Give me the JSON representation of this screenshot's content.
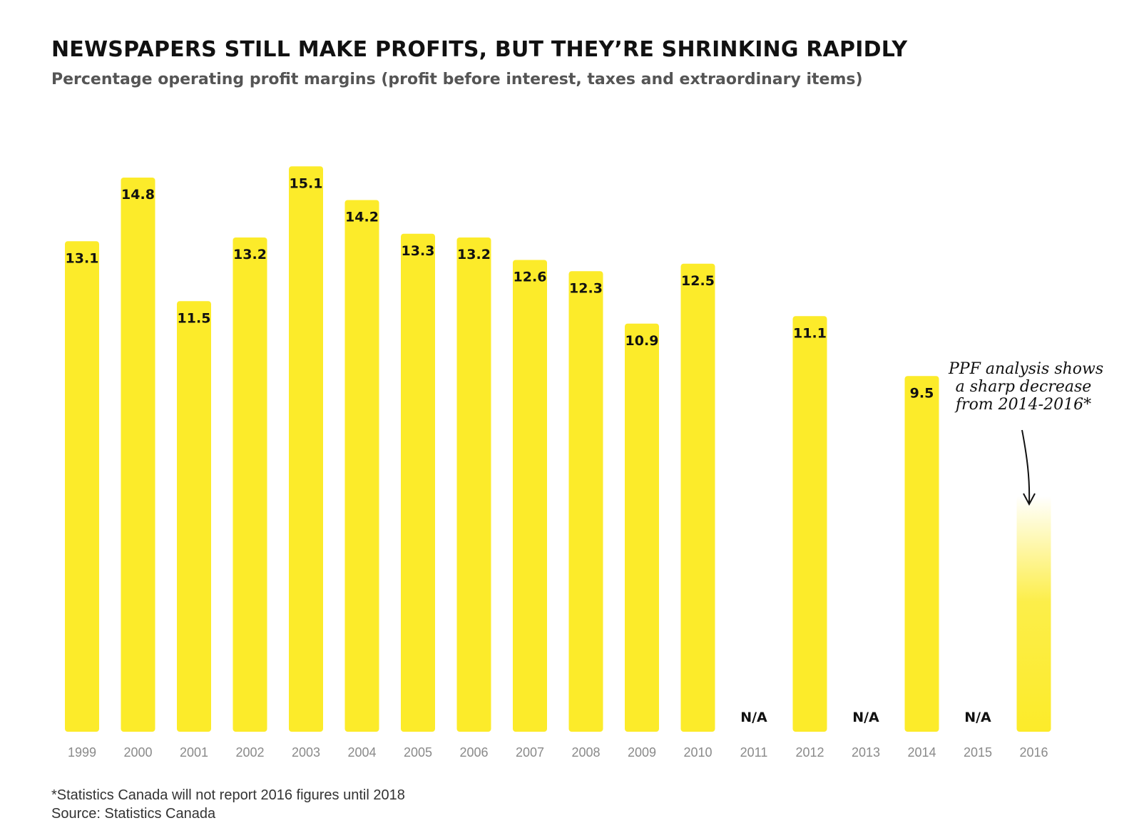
{
  "header": {
    "title": "NEWSPAPERS STILL MAKE PROFITS, BUT THEY’RE SHRINKING RAPIDLY",
    "subtitle": "Percentage operating profit margins (profit before interest, taxes and extraordinary items)"
  },
  "footer": {
    "footnote": "*Statistics Canada will not report 2016 figures until 2018",
    "source": "Source: Statistics Canada"
  },
  "annotation": {
    "lines": [
      "PPF analysis shows",
      "a sharp decrease",
      "from 2014-2016*"
    ]
  },
  "colors": {
    "bar": "#FCEB2A",
    "label": "#111111",
    "axis_text": "#8a8a8a"
  },
  "chart_data": {
    "type": "bar",
    "title": "NEWSPAPERS STILL MAKE PROFITS, BUT THEY’RE SHRINKING RAPIDLY",
    "subtitle": "Percentage operating profit margins (profit before interest, taxes and extraordinary items)",
    "xlabel": "",
    "ylabel": "",
    "categories": [
      "1999",
      "2000",
      "2001",
      "2002",
      "2003",
      "2004",
      "2005",
      "2006",
      "2007",
      "2008",
      "2009",
      "2010",
      "2011",
      "2012",
      "2013",
      "2014",
      "2015",
      "2016"
    ],
    "values": [
      13.1,
      14.8,
      11.5,
      13.2,
      15.1,
      14.2,
      13.3,
      13.2,
      12.6,
      12.3,
      10.9,
      12.5,
      null,
      11.1,
      null,
      9.5,
      null,
      null
    ],
    "value_labels": [
      "13.1",
      "14.8",
      "11.5",
      "13.2",
      "15.1",
      "14.2",
      "13.3",
      "13.2",
      "12.6",
      "12.3",
      "10.9",
      "12.5",
      "N/A",
      "11.1",
      "N/A",
      "9.5",
      "N/A",
      ""
    ],
    "estimated_bar": {
      "category": "2016",
      "value": 6.3,
      "style": "gradient fade"
    },
    "ylim": [
      0,
      16
    ],
    "grid": false,
    "legend": "none"
  }
}
